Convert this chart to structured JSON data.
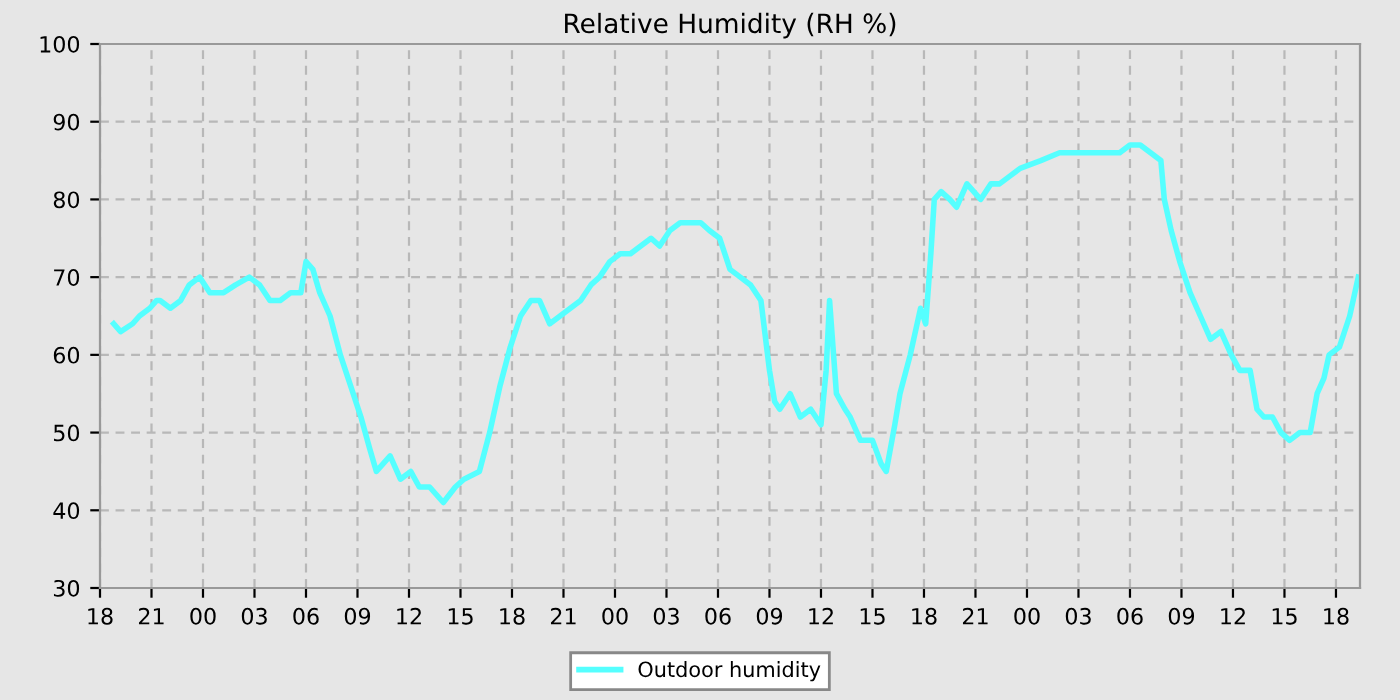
{
  "chart_data": {
    "type": "line",
    "title": "Relative Humidity (RH %)",
    "xlim": [
      18,
      91.4
    ],
    "ylim": [
      30,
      100
    ],
    "yticks": [
      30,
      40,
      50,
      60,
      70,
      80,
      90,
      100
    ],
    "xticks": [
      18,
      21,
      {
        "value": 24,
        "label": "00"
      },
      {
        "value": 27,
        "label": "03"
      },
      {
        "value": 30,
        "label": "06"
      },
      {
        "value": 33,
        "label": "09"
      },
      {
        "value": 36,
        "label": "12"
      },
      {
        "value": 39,
        "label": "15"
      },
      {
        "value": 42,
        "label": "18"
      },
      {
        "value": 45,
        "label": "21"
      },
      {
        "value": 48,
        "label": "00"
      },
      {
        "value": 51,
        "label": "03"
      },
      {
        "value": 54,
        "label": "06"
      },
      {
        "value": 57,
        "label": "09"
      },
      {
        "value": 60,
        "label": "12"
      },
      {
        "value": 63,
        "label": "15"
      },
      {
        "value": 66,
        "label": "18"
      },
      {
        "value": 69,
        "label": "21"
      },
      {
        "value": 72,
        "label": "00"
      },
      {
        "value": 75,
        "label": "03"
      },
      {
        "value": 78,
        "label": "06"
      },
      {
        "value": 81,
        "label": "09"
      },
      {
        "value": 84,
        "label": "12"
      },
      {
        "value": 87,
        "label": "15"
      },
      {
        "value": 90,
        "label": "18"
      }
    ],
    "grid": true,
    "legend": "bottom",
    "series": [
      {
        "name": "Outdoor humidity",
        "color": "#55ffff",
        "x": [
          18.8,
          19.2,
          19.9,
          20.3,
          20.9,
          21.3,
          21.5,
          22.1,
          22.7,
          23.2,
          23.8,
          24.4,
          25.2,
          25.9,
          26.7,
          27.3,
          27.9,
          28.5,
          29.1,
          29.7,
          30.0,
          30.4,
          30.8,
          31.4,
          32.0,
          32.6,
          33.2,
          33.7,
          34.1,
          34.9,
          35.5,
          36.1,
          36.6,
          37.2,
          38.0,
          38.7,
          39.2,
          40.1,
          40.7,
          41.3,
          41.9,
          42.5,
          43.1,
          43.6,
          44.2,
          44.8,
          45.4,
          46.0,
          46.6,
          47.1,
          47.7,
          48.3,
          48.9,
          49.5,
          50.1,
          50.6,
          51.2,
          51.8,
          53.0,
          53.5,
          54.1,
          54.7,
          55.3,
          55.9,
          56.5,
          57.0,
          57.3,
          57.6,
          58.2,
          58.8,
          59.4,
          60.0,
          60.3,
          60.5,
          60.9,
          61.4,
          61.7,
          62.3,
          63.0,
          63.5,
          63.8,
          64.3,
          64.6,
          65.2,
          65.8,
          66.1,
          66.4,
          66.6,
          67.0,
          67.5,
          67.9,
          68.5,
          69.3,
          69.9,
          70.4,
          71.0,
          71.6,
          72.8,
          73.9,
          75.1,
          76.3,
          77.4,
          78.0,
          78.6,
          79.2,
          79.8,
          80.0,
          80.4,
          80.9,
          81.5,
          82.1,
          82.7,
          83.3,
          83.9,
          84.4,
          85.0,
          85.4,
          85.8,
          86.3,
          86.8,
          87.3,
          87.9,
          88.5,
          88.9,
          89.3,
          89.6,
          90.2,
          90.8,
          91.3
        ],
        "values": [
          64,
          63,
          64,
          65,
          66,
          67,
          67,
          66,
          67,
          69,
          70,
          68,
          68,
          69,
          70,
          69,
          67,
          67,
          68,
          68,
          72,
          71,
          68,
          65,
          60,
          56,
          52,
          48,
          45,
          47,
          44,
          45,
          43,
          43,
          41,
          43,
          44,
          45,
          50,
          56,
          61,
          65,
          67,
          67,
          64,
          65,
          66,
          67,
          69,
          70,
          72,
          73,
          73,
          74,
          75,
          74,
          76,
          77,
          77,
          76,
          75,
          71,
          70,
          69,
          67,
          58,
          54,
          53,
          55,
          52,
          53,
          51,
          58,
          67,
          55,
          53,
          52,
          49,
          49,
          46,
          45,
          51,
          55,
          60,
          66,
          64,
          73,
          80,
          81,
          80,
          79,
          82,
          80,
          82,
          82,
          83,
          84,
          85,
          86,
          86,
          86,
          86,
          87,
          87,
          86,
          85,
          80,
          76,
          72,
          68,
          65,
          62,
          63,
          60,
          58,
          58,
          53,
          52,
          52,
          50,
          49,
          50,
          50,
          55,
          57,
          60,
          61,
          65,
          70
        ]
      }
    ]
  }
}
